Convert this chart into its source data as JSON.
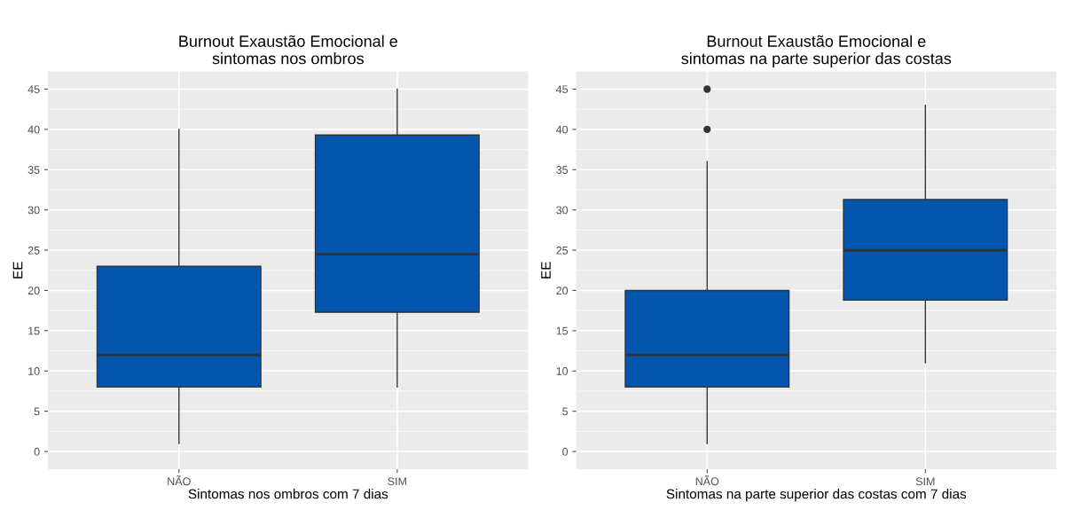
{
  "chart_data": [
    {
      "type": "box",
      "title": "Burnout Exaustão Emocional e\nsintomas nos ombros",
      "xlabel": "Sintomas nos ombros com 7 dias",
      "ylabel": "EE",
      "categories": [
        "NÃO",
        "SIM"
      ],
      "color": "#0455ae",
      "boxes": [
        {
          "low": 1,
          "q1": 8,
          "median": 12,
          "q3": 23,
          "high": 40
        },
        {
          "low": 8,
          "q1": 17.3,
          "median": 24.5,
          "q3": 39.3,
          "high": 45
        }
      ],
      "ylim": [
        -2.2,
        47.2
      ],
      "yticks": [
        0,
        5,
        10,
        15,
        20,
        25,
        30,
        35,
        40,
        45
      ],
      "grid": true
    },
    {
      "type": "box",
      "title": "Burnout Exaustão Emocional e\nsintomas na parte superior das costas",
      "xlabel": "Sintomas na parte superior das costas com 7 dias",
      "ylabel": "EE",
      "categories": [
        "NÃO",
        "SIM"
      ],
      "color": "#0455ae",
      "boxes": [
        {
          "low": 1,
          "q1": 8,
          "median": 12,
          "q3": 20,
          "high": 36,
          "outliers": [
            40,
            45
          ]
        },
        {
          "low": 11,
          "q1": 18.8,
          "median": 25,
          "q3": 31.3,
          "high": 43
        }
      ],
      "ylim": [
        -2.2,
        47.2
      ],
      "yticks": [
        0,
        5,
        10,
        15,
        20,
        25,
        30,
        35,
        40,
        45
      ],
      "grid": true
    }
  ]
}
